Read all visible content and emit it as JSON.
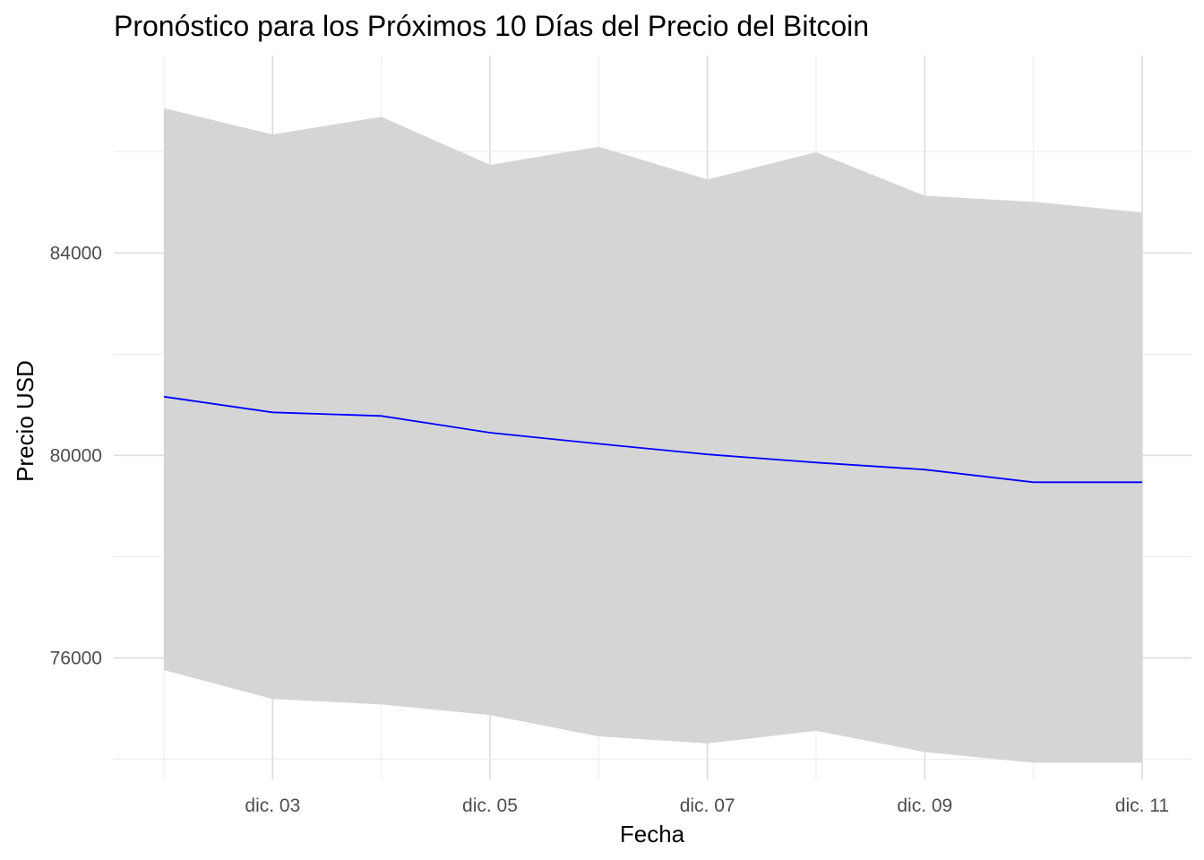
{
  "chart_data": {
    "type": "line",
    "title": "Pronóstico para los Próximos 10 Días del Precio del Bitcoin",
    "xlabel": "Fecha",
    "ylabel": "Precio USD",
    "x": [
      "dic. 02",
      "dic. 03",
      "dic. 04",
      "dic. 05",
      "dic. 06",
      "dic. 07",
      "dic. 08",
      "dic. 09",
      "dic. 10",
      "dic. 11"
    ],
    "x_tick_labels": [
      "dic. 03",
      "dic. 05",
      "dic. 07",
      "dic. 09",
      "dic. 11"
    ],
    "y_tick_values": [
      76000,
      80000,
      84000
    ],
    "y_tick_labels": [
      "76000",
      "80000",
      "84000"
    ],
    "ylim": [
      73600,
      87900
    ],
    "series": [
      {
        "values": [
          81160,
          80850,
          80780,
          80450,
          80230,
          80020,
          79860,
          79720,
          79470,
          79470
        ],
        "color": "#0000ff"
      }
    ],
    "interval": {
      "lower": [
        75760,
        75190,
        75080,
        74870,
        74450,
        74310,
        74560,
        74140,
        73930,
        73930
      ],
      "upper": [
        86860,
        86340,
        86690,
        85740,
        86100,
        85450,
        85990,
        85130,
        85010,
        84800
      ],
      "color": "#d5d5d5"
    },
    "grid": true,
    "legend": "none"
  }
}
